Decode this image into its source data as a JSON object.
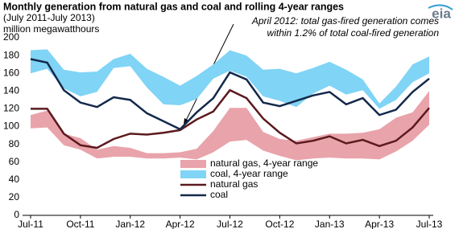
{
  "chart_data": {
    "type": "line",
    "title": "Monthly generation from natural gas and coal and rolling 4-year ranges",
    "subtitle": "(July 2011-July 2013)",
    "y_label": "million megawatthours",
    "logo": "eia",
    "annotation": [
      "April 2012: total gas-fired generation comes",
      "within 1.2% of total coal-fired generation"
    ],
    "categories": [
      "Jul-11",
      null,
      null,
      "Oct-11",
      null,
      null,
      "Jan-12",
      null,
      null,
      "Apr-12",
      null,
      null,
      "Jul-12",
      null,
      null,
      "Oct-12",
      null,
      null,
      "Jan-13",
      null,
      null,
      "Apr-13",
      null,
      null,
      "Jul-13"
    ],
    "ylim": [
      0,
      200
    ],
    "yticks": [
      0,
      20,
      40,
      60,
      80,
      100,
      120,
      140,
      160,
      180,
      200
    ],
    "grid": false,
    "series": [
      {
        "name": "natural gas, 4-year range",
        "kind": "band",
        "color": "#e9a3aa",
        "low": [
          98,
          99,
          79,
          74,
          64,
          66,
          66,
          64,
          64,
          65,
          63,
          71,
          83,
          85,
          73,
          67,
          62,
          64,
          65,
          64,
          64,
          63,
          72,
          84,
          102
        ],
        "high": [
          113,
          118,
          92,
          87,
          74,
          78,
          76,
          70,
          70,
          71,
          75,
          95,
          121,
          121,
          94,
          86,
          84,
          88,
          92,
          92,
          93,
          97,
          110,
          116,
          140
        ]
      },
      {
        "name": "coal, 4-year range",
        "kind": "band",
        "color": "#80d4f5",
        "low": [
          160,
          165,
          143,
          134,
          139,
          166,
          168,
          144,
          125,
          124,
          131,
          154,
          163,
          156,
          134,
          129,
          122,
          137,
          146,
          136,
          141,
          120,
          130,
          150,
          160
        ],
        "high": [
          186,
          187,
          164,
          161,
          162,
          176,
          182,
          165,
          156,
          146,
          157,
          170,
          186,
          180,
          164,
          165,
          160,
          166,
          173,
          164,
          153,
          126,
          145,
          170,
          179
        ]
      },
      {
        "name": "natural gas",
        "kind": "line",
        "color": "#5b1a1e",
        "values": [
          120,
          120,
          92,
          79,
          76,
          86,
          92,
          91,
          93,
          96,
          108,
          117,
          141,
          132,
          109,
          93,
          81,
          84,
          89,
          81,
          85,
          78,
          84,
          99,
          121
        ]
      },
      {
        "name": "coal",
        "kind": "line",
        "color": "#13294b",
        "values": [
          176,
          172,
          141,
          127,
          122,
          133,
          130,
          115,
          106,
          97,
          116,
          132,
          161,
          153,
          127,
          123,
          129,
          135,
          139,
          125,
          132,
          113,
          119,
          139,
          154
        ]
      }
    ]
  }
}
